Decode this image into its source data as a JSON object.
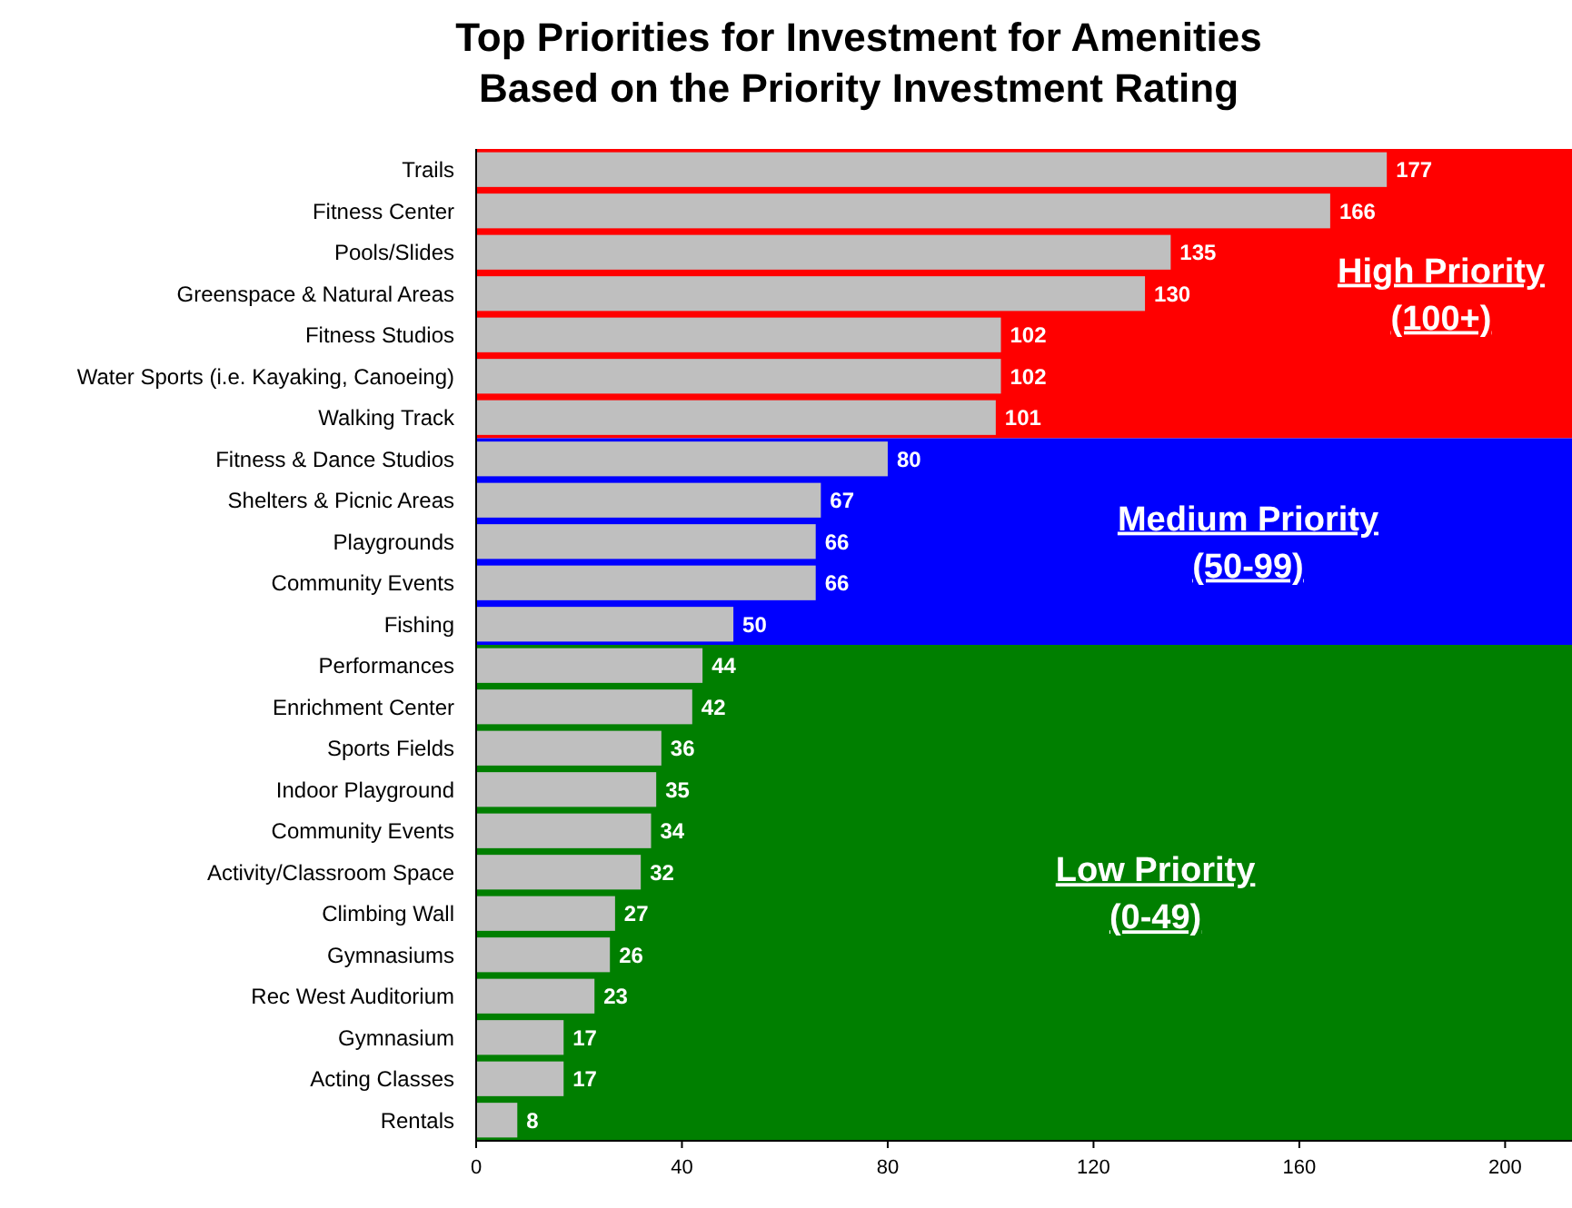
{
  "chart_data": {
    "type": "bar",
    "orientation": "horizontal",
    "title": "Top Priorities for Investment for Amenities\nBased on the Priority Investment Rating",
    "categories": [
      "Trails",
      "Fitness Center",
      "Pools/Slides",
      "Greenspace & Natural Areas",
      "Fitness Studios",
      "Water Sports (i.e. Kayaking, Canoeing)",
      "Walking Track",
      "Fitness & Dance Studios",
      "Shelters & Picnic Areas",
      "Playgrounds",
      "Community Events",
      "Fishing",
      "Performances",
      "Enrichment Center",
      "Sports Fields",
      "Indoor Playground",
      "Community Events",
      "Activity/Classroom Space",
      "Climbing Wall",
      "Gymnasiums",
      "Rec West Auditorium",
      "Gymnasium",
      "Acting Classes",
      "Rentals"
    ],
    "values": [
      177,
      166,
      135,
      130,
      102,
      102,
      101,
      80,
      67,
      66,
      66,
      50,
      44,
      42,
      36,
      35,
      34,
      32,
      27,
      26,
      23,
      17,
      17,
      8
    ],
    "color": "#bfbfbf",
    "data_labels": true,
    "xlim": [
      0,
      213
    ],
    "xticks": [
      0,
      40,
      80,
      120,
      160,
      200
    ],
    "grid": false,
    "bands": [
      {
        "axis": "y",
        "from": "Trails",
        "to": "Walking Track",
        "label": "High Priority\n(100+)",
        "color": "#ff0000"
      },
      {
        "axis": "y",
        "from": "Fitness & Dance Studios",
        "to": "Fishing",
        "label": "Medium Priority\n(50-99)",
        "color": "#0000ff"
      },
      {
        "axis": "y",
        "from": "Performances",
        "to": "Rentals",
        "label": "Low Priority\n(0-49)",
        "color": "#007f00"
      }
    ]
  }
}
